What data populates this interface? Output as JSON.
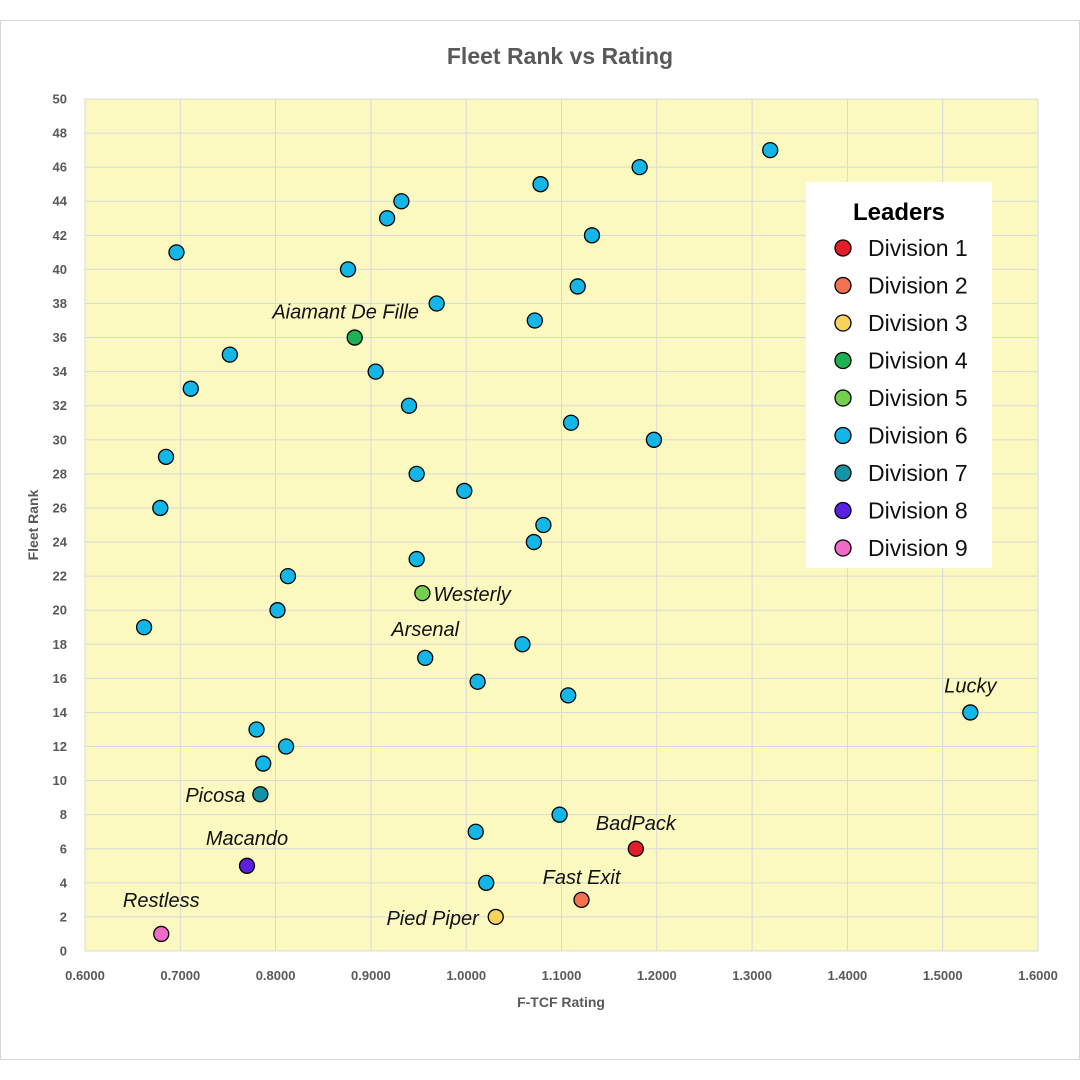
{
  "chart_data": {
    "type": "scatter",
    "title": "Fleet Rank vs Rating",
    "xlabel": "F-TCF Rating",
    "ylabel": "Fleet Rank",
    "xlim": [
      0.6,
      1.6
    ],
    "ylim": [
      0,
      50
    ],
    "x_ticks": [
      "0.6000",
      "0.7000",
      "0.8000",
      "0.9000",
      "1.0000",
      "1.1000",
      "1.2000",
      "1.3000",
      "1.4000",
      "1.5000",
      "1.6000"
    ],
    "y_ticks": [
      "0",
      "2",
      "4",
      "6",
      "8",
      "10",
      "12",
      "14",
      "16",
      "18",
      "20",
      "22",
      "24",
      "26",
      "28",
      "30",
      "32",
      "34",
      "36",
      "38",
      "40",
      "42",
      "44",
      "46",
      "48",
      "50"
    ],
    "grid": true,
    "plot_background": "#fbf9c0",
    "legend": {
      "title": "Leaders",
      "position": "top-right",
      "entries": [
        {
          "label": "Division 1",
          "color": "#e41e26"
        },
        {
          "label": "Division 2",
          "color": "#f4714f"
        },
        {
          "label": "Division 3",
          "color": "#f7d25c"
        },
        {
          "label": "Division 4",
          "color": "#1db153"
        },
        {
          "label": "Division 5",
          "color": "#73cf4d"
        },
        {
          "label": "Division 6",
          "color": "#12b7e8"
        },
        {
          "label": "Division 7",
          "color": "#1593a6"
        },
        {
          "label": "Division 8",
          "color": "#5a1fe0"
        },
        {
          "label": "Division 9",
          "color": "#f06bc8"
        }
      ]
    },
    "series": [
      {
        "division": 1,
        "points": [
          {
            "x": 1.178,
            "y": 6,
            "label": "BadPack"
          }
        ]
      },
      {
        "division": 2,
        "points": [
          {
            "x": 1.121,
            "y": 3,
            "label": "Fast Exit"
          }
        ]
      },
      {
        "division": 3,
        "points": [
          {
            "x": 1.031,
            "y": 2,
            "label": "Pied Piper"
          }
        ]
      },
      {
        "division": 4,
        "points": [
          {
            "x": 0.883,
            "y": 36,
            "label": "Aiamant De Fille"
          }
        ]
      },
      {
        "division": 5,
        "points": [
          {
            "x": 0.954,
            "y": 21,
            "label": "Westerly"
          }
        ]
      },
      {
        "division": 6,
        "points": [
          {
            "x": 1.319,
            "y": 47
          },
          {
            "x": 1.182,
            "y": 46
          },
          {
            "x": 1.078,
            "y": 45
          },
          {
            "x": 0.932,
            "y": 44
          },
          {
            "x": 0.917,
            "y": 43
          },
          {
            "x": 1.132,
            "y": 42
          },
          {
            "x": 0.696,
            "y": 41
          },
          {
            "x": 0.876,
            "y": 40
          },
          {
            "x": 1.117,
            "y": 39
          },
          {
            "x": 0.969,
            "y": 38
          },
          {
            "x": 1.072,
            "y": 37
          },
          {
            "x": 0.752,
            "y": 35
          },
          {
            "x": 0.905,
            "y": 34
          },
          {
            "x": 0.711,
            "y": 33
          },
          {
            "x": 0.94,
            "y": 32
          },
          {
            "x": 1.11,
            "y": 31
          },
          {
            "x": 1.197,
            "y": 30
          },
          {
            "x": 0.685,
            "y": 29
          },
          {
            "x": 0.948,
            "y": 28
          },
          {
            "x": 0.998,
            "y": 27
          },
          {
            "x": 0.679,
            "y": 26
          },
          {
            "x": 1.081,
            "y": 25
          },
          {
            "x": 1.071,
            "y": 24
          },
          {
            "x": 0.948,
            "y": 23
          },
          {
            "x": 0.813,
            "y": 22
          },
          {
            "x": 0.802,
            "y": 20
          },
          {
            "x": 0.662,
            "y": 19
          },
          {
            "x": 1.059,
            "y": 18
          },
          {
            "x": 0.957,
            "y": 17.2,
            "label": "Arsenal"
          },
          {
            "x": 1.012,
            "y": 15.8
          },
          {
            "x": 1.107,
            "y": 15
          },
          {
            "x": 1.529,
            "y": 14,
            "label": "Lucky"
          },
          {
            "x": 0.78,
            "y": 13
          },
          {
            "x": 0.811,
            "y": 12
          },
          {
            "x": 0.787,
            "y": 11
          },
          {
            "x": 1.098,
            "y": 8
          },
          {
            "x": 1.01,
            "y": 7
          },
          {
            "x": 1.021,
            "y": 4
          }
        ]
      },
      {
        "division": 7,
        "points": [
          {
            "x": 0.784,
            "y": 9.2,
            "label": "Picosa"
          }
        ]
      },
      {
        "division": 8,
        "points": [
          {
            "x": 0.77,
            "y": 5,
            "label": "Macando"
          }
        ]
      },
      {
        "division": 9,
        "points": [
          {
            "x": 0.68,
            "y": 1,
            "label": "Restless"
          }
        ]
      }
    ]
  }
}
